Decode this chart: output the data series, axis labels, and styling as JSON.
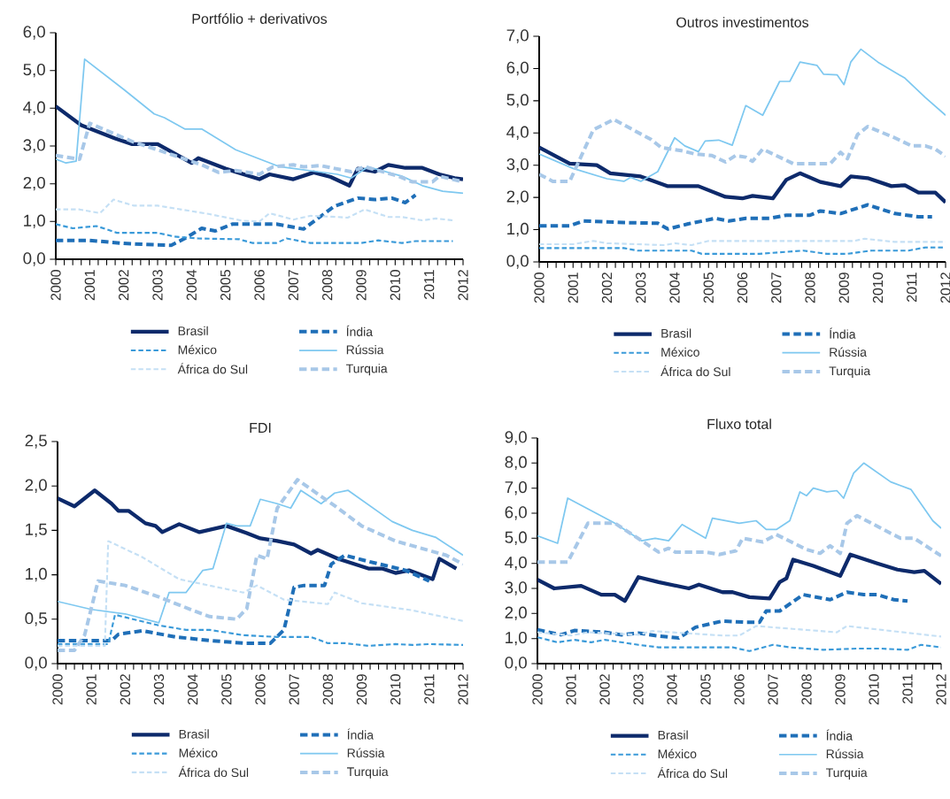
{
  "chart_data": [
    {
      "type": "line",
      "title": "Portfólio + derivativos",
      "xlim": [
        2000,
        2012
      ],
      "xticks": [
        2000,
        2001,
        2002,
        2003,
        2004,
        2005,
        2006,
        2007,
        2008,
        2009,
        2010,
        2011,
        2012
      ],
      "ylim": [
        0,
        6
      ],
      "yticks": [
        {
          "value": 0,
          "label": "0,0"
        },
        {
          "value": 1,
          "label": "1,0"
        },
        {
          "value": 2,
          "label": "2,0"
        },
        {
          "value": 3,
          "label": "3,0"
        },
        {
          "value": 4,
          "label": "4,0"
        },
        {
          "value": 5,
          "label": "5,0"
        },
        {
          "value": 6,
          "label": "6,0"
        }
      ],
      "legend": "bottom",
      "series": [
        {
          "name": "Brasil",
          "color": "#0d2a6b",
          "line_style": "solid",
          "x": [
            2000,
            2000.75,
            2001.75,
            2002.25,
            2003,
            2004,
            2004.2,
            2005,
            2006,
            2006.3,
            2007,
            2007.6,
            2008.1,
            2008.65,
            2008.9,
            2009.4,
            2009.8,
            2010.3,
            2010.8,
            2011.3,
            2011.75,
            2012
          ],
          "values": [
            4.05,
            3.55,
            3.2,
            3.05,
            3.05,
            2.55,
            2.68,
            2.4,
            2.12,
            2.25,
            2.12,
            2.3,
            2.18,
            1.95,
            2.4,
            2.32,
            2.5,
            2.42,
            2.42,
            2.25,
            2.15,
            2.12
          ]
        },
        {
          "name": "Índia",
          "color": "#1f6fb8",
          "line_style": "dashed",
          "x": [
            2000,
            2001,
            2002,
            2003,
            2003.4,
            2003.8,
            2004.3,
            2004.7,
            2005.2,
            2006.5,
            2007.3,
            2008.2,
            2008.9,
            2009.4,
            2009.9,
            2010.3,
            2010.6
          ],
          "values": [
            0.5,
            0.5,
            0.42,
            0.38,
            0.37,
            0.55,
            0.82,
            0.75,
            0.93,
            0.93,
            0.8,
            1.4,
            1.62,
            1.58,
            1.62,
            1.5,
            1.7
          ]
        },
        {
          "name": "México",
          "color": "#3a9ad9",
          "line_style": "dashed",
          "x": [
            2000,
            2000.5,
            2001.2,
            2001.8,
            2003,
            2003.5,
            2004.2,
            2005.4,
            2005.8,
            2006.5,
            2006.8,
            2007.5,
            2009,
            2009.5,
            2010.2,
            2010.6,
            2011.7
          ],
          "values": [
            0.93,
            0.82,
            0.88,
            0.7,
            0.7,
            0.6,
            0.55,
            0.53,
            0.43,
            0.43,
            0.55,
            0.43,
            0.43,
            0.5,
            0.43,
            0.48,
            0.48
          ]
        },
        {
          "name": "Rússia",
          "color": "#7ec8f0",
          "line_style": "solid",
          "x": [
            2000,
            2000.3,
            2000.6,
            2000.85,
            2002,
            2002.9,
            2003.2,
            2003.8,
            2004.3,
            2005.3,
            2006.6,
            2008.3,
            2008.7,
            2009.2,
            2010.2,
            2010.8,
            2011.4,
            2012
          ],
          "values": [
            2.65,
            2.55,
            2.6,
            5.3,
            4.5,
            3.85,
            3.75,
            3.45,
            3.45,
            2.9,
            2.45,
            2.25,
            2.15,
            2.45,
            2.2,
            1.95,
            1.8,
            1.75
          ]
        },
        {
          "name": "África do Sul",
          "color": "#c5e0f5",
          "line_style": "dashed",
          "x": [
            2000,
            2000.7,
            2001.3,
            2001.7,
            2002.3,
            2003,
            2004.5,
            2005.5,
            2006,
            2006.3,
            2007,
            2007.5,
            2008.3,
            2008.6,
            2009.1,
            2009.8,
            2010.2,
            2010.8,
            2011.2,
            2011.7
          ],
          "values": [
            1.32,
            1.32,
            1.22,
            1.58,
            1.42,
            1.42,
            1.2,
            1.02,
            1.0,
            1.22,
            1.05,
            1.15,
            1.12,
            1.1,
            1.32,
            1.12,
            1.12,
            1.03,
            1.08,
            1.03
          ]
        },
        {
          "name": "Turquia",
          "color": "#a8c8e8",
          "line_style": "dashed",
          "x": [
            2000,
            2000.7,
            2001,
            2002.3,
            2003,
            2004.3,
            2004.8,
            2005.3,
            2006,
            2006.4,
            2007,
            2007.3,
            2007.8,
            2008.7,
            2009.1,
            2010.1,
            2010.5,
            2011.1,
            2011.3,
            2012
          ],
          "values": [
            2.75,
            2.65,
            3.6,
            3.1,
            2.9,
            2.5,
            2.3,
            2.35,
            2.25,
            2.45,
            2.5,
            2.45,
            2.48,
            2.32,
            2.45,
            2.2,
            2.05,
            2.05,
            2.2,
            2.05
          ]
        }
      ]
    },
    {
      "type": "line",
      "title": "Outros investimentos",
      "xlim": [
        2000,
        2012
      ],
      "xticks": [
        2000,
        2001,
        2002,
        2003,
        2004,
        2005,
        2006,
        2007,
        2008,
        2009,
        2010,
        2011,
        2012
      ],
      "ylim": [
        0,
        7
      ],
      "yticks": [
        {
          "value": 0,
          "label": "0,0"
        },
        {
          "value": 1,
          "label": "1,0"
        },
        {
          "value": 2,
          "label": "2,0"
        },
        {
          "value": 3,
          "label": "3,0"
        },
        {
          "value": 4,
          "label": "4,0"
        },
        {
          "value": 5,
          "label": "5,0"
        },
        {
          "value": 6,
          "label": "6,0"
        },
        {
          "value": 7,
          "label": "7,0"
        }
      ],
      "legend": "bottom",
      "series": [
        {
          "name": "Brasil",
          "color": "#0d2a6b",
          "line_style": "solid",
          "x": [
            2000,
            2000.9,
            2001.7,
            2002.1,
            2003,
            2003.8,
            2004.7,
            2005.5,
            2006,
            2006.3,
            2006.9,
            2007.3,
            2007.7,
            2008.3,
            2008.9,
            2009.2,
            2009.7,
            2010.4,
            2010.8,
            2011.2,
            2011.7,
            2012
          ],
          "values": [
            3.55,
            3.05,
            3.0,
            2.75,
            2.65,
            2.35,
            2.35,
            2.02,
            1.97,
            2.05,
            1.97,
            2.55,
            2.75,
            2.48,
            2.35,
            2.65,
            2.6,
            2.35,
            2.38,
            2.15,
            2.15,
            1.85
          ]
        },
        {
          "name": "Índia",
          "color": "#1f6fb8",
          "line_style": "dashed",
          "x": [
            2000,
            2000.9,
            2001.3,
            2002.5,
            2003.5,
            2003.8,
            2004.4,
            2005.2,
            2005.6,
            2006.1,
            2006.8,
            2007.3,
            2008,
            2008.3,
            2008.9,
            2009.7,
            2010.5,
            2011.2,
            2011.6
          ],
          "values": [
            1.12,
            1.12,
            1.27,
            1.22,
            1.2,
            1.02,
            1.18,
            1.35,
            1.27,
            1.35,
            1.35,
            1.45,
            1.45,
            1.58,
            1.5,
            1.77,
            1.5,
            1.4,
            1.4
          ]
        },
        {
          "name": "México",
          "color": "#3a9ad9",
          "line_style": "dashed",
          "x": [
            2000,
            2002.5,
            2002.9,
            2004.5,
            2004.8,
            2006.5,
            2007.8,
            2008.5,
            2009.1,
            2009.8,
            2010.9,
            2011.4,
            2012
          ],
          "values": [
            0.43,
            0.43,
            0.35,
            0.35,
            0.25,
            0.25,
            0.35,
            0.25,
            0.25,
            0.35,
            0.35,
            0.45,
            0.45
          ]
        },
        {
          "name": "Rússia",
          "color": "#7ec8f0",
          "line_style": "solid",
          "x": [
            2000,
            2001,
            2002,
            2002.5,
            2002.7,
            2003,
            2003.5,
            2004,
            2004.3,
            2004.7,
            2004.9,
            2005.3,
            2005.7,
            2006.1,
            2006.6,
            2007.1,
            2007.4,
            2007.7,
            2008.2,
            2008.4,
            2008.8,
            2009,
            2009.2,
            2009.5,
            2010,
            2010.8,
            2011.4,
            2012
          ],
          "values": [
            3.35,
            2.9,
            2.58,
            2.5,
            2.62,
            2.5,
            2.8,
            3.85,
            3.6,
            3.42,
            3.75,
            3.78,
            3.62,
            4.85,
            4.55,
            5.6,
            5.6,
            6.2,
            6.1,
            5.82,
            5.8,
            5.5,
            6.2,
            6.6,
            6.2,
            5.7,
            5.1,
            4.55
          ]
        },
        {
          "name": "África do Sul",
          "color": "#c5e0f5",
          "line_style": "dashed",
          "x": [
            2000,
            2001,
            2001.6,
            2002,
            2003.7,
            2004,
            2004.5,
            2005,
            2009.3,
            2009.6,
            2010.5,
            2012
          ],
          "values": [
            0.55,
            0.55,
            0.65,
            0.58,
            0.52,
            0.58,
            0.52,
            0.65,
            0.65,
            0.72,
            0.62,
            0.62
          ]
        },
        {
          "name": "Turquia",
          "color": "#a8c8e8",
          "line_style": "dashed",
          "x": [
            2000,
            2000.4,
            2000.9,
            2001.6,
            2002.2,
            2003.3,
            2003.6,
            2004.2,
            2004.6,
            2005.1,
            2005.5,
            2005.8,
            2006.1,
            2006.3,
            2006.6,
            2007.5,
            2008.3,
            2008.6,
            2008.9,
            2009.1,
            2009.4,
            2009.7,
            2010.5,
            2011,
            2011.4,
            2011.7,
            2012
          ],
          "values": [
            2.72,
            2.5,
            2.5,
            4.1,
            4.42,
            3.8,
            3.55,
            3.45,
            3.35,
            3.3,
            3.1,
            3.3,
            3.25,
            3.12,
            3.5,
            3.05,
            3.05,
            3.05,
            3.4,
            3.2,
            3.95,
            4.2,
            3.85,
            3.6,
            3.6,
            3.5,
            3.28
          ]
        }
      ]
    },
    {
      "type": "line",
      "title": "FDI",
      "xlim": [
        2000,
        2012
      ],
      "xticks": [
        2000,
        2001,
        2002,
        2003,
        2004,
        2005,
        2006,
        2007,
        2008,
        2009,
        2010,
        2011,
        2012
      ],
      "ylim": [
        0,
        2.5
      ],
      "yticks": [
        {
          "value": 0,
          "label": "0,0"
        },
        {
          "value": 0.5,
          "label": "0,5"
        },
        {
          "value": 1,
          "label": "1,0"
        },
        {
          "value": 1.5,
          "label": "1,5"
        },
        {
          "value": 2,
          "label": "2,0"
        },
        {
          "value": 2.5,
          "label": "2,5"
        }
      ],
      "legend": "bottom",
      "series": [
        {
          "name": "Brasil",
          "color": "#0d2a6b",
          "line_style": "solid",
          "x": [
            2000,
            2000.5,
            2001.1,
            2001.6,
            2001.8,
            2002.1,
            2002.6,
            2002.9,
            2003.1,
            2003.6,
            2004.2,
            2005,
            2005.6,
            2006,
            2006.5,
            2007,
            2007.5,
            2007.7,
            2008.3,
            2009.2,
            2009.6,
            2010,
            2010.4,
            2011.1,
            2011.3,
            2011.8
          ],
          "values": [
            1.86,
            1.77,
            1.95,
            1.8,
            1.72,
            1.72,
            1.58,
            1.55,
            1.48,
            1.57,
            1.48,
            1.55,
            1.47,
            1.41,
            1.38,
            1.34,
            1.24,
            1.28,
            1.18,
            1.07,
            1.07,
            1.02,
            1.05,
            0.95,
            1.18,
            1.07
          ]
        },
        {
          "name": "Índia",
          "color": "#1f6fb8",
          "line_style": "dashed",
          "x": [
            2000,
            2001.6,
            2001.8,
            2002.5,
            2003.5,
            2004.5,
            2005.5,
            2006.3,
            2006.7,
            2007,
            2007.3,
            2007.9,
            2008.1,
            2008.5,
            2009.2,
            2010.3,
            2011
          ],
          "values": [
            0.26,
            0.26,
            0.33,
            0.37,
            0.3,
            0.26,
            0.23,
            0.23,
            0.38,
            0.86,
            0.88,
            0.88,
            1.12,
            1.22,
            1.15,
            1.05,
            0.93
          ]
        },
        {
          "name": "México",
          "color": "#3a9ad9",
          "line_style": "dashed",
          "x": [
            2000,
            2001.5,
            2001.7,
            2003,
            2003.8,
            2004.5,
            2005.5,
            2006.5,
            2007.5,
            2008,
            2008.5,
            2009.2,
            2010,
            2010.5,
            2011,
            2012
          ],
          "values": [
            0.22,
            0.22,
            0.55,
            0.43,
            0.38,
            0.38,
            0.32,
            0.3,
            0.3,
            0.23,
            0.23,
            0.2,
            0.22,
            0.21,
            0.22,
            0.21
          ]
        },
        {
          "name": "Rússia",
          "color": "#7ec8f0",
          "line_style": "solid",
          "x": [
            2000,
            2001,
            2002,
            2003,
            2003.3,
            2003.8,
            2004.3,
            2004.6,
            2005,
            2005.3,
            2005.7,
            2006,
            2006.5,
            2006.9,
            2007.2,
            2007.8,
            2008.2,
            2008.6,
            2009.9,
            2010.5,
            2011.2,
            2012
          ],
          "values": [
            0.7,
            0.61,
            0.56,
            0.46,
            0.8,
            0.8,
            1.05,
            1.07,
            1.58,
            1.55,
            1.55,
            1.85,
            1.8,
            1.75,
            1.95,
            1.8,
            1.92,
            1.95,
            1.6,
            1.5,
            1.42,
            1.22
          ]
        },
        {
          "name": "África do Sul",
          "color": "#c5e0f5",
          "line_style": "dashed",
          "x": [
            2000,
            2001.4,
            2001.5,
            2002.5,
            2003.6,
            2005.5,
            2005.9,
            2006.7,
            2008,
            2008.2,
            2009,
            2010.5,
            2012
          ],
          "values": [
            0.2,
            0.2,
            1.38,
            1.2,
            0.95,
            0.8,
            0.88,
            0.72,
            0.67,
            0.8,
            0.68,
            0.6,
            0.48
          ]
        },
        {
          "name": "Turquia",
          "color": "#a8c8e8",
          "line_style": "dashed",
          "x": [
            2000,
            2000.5,
            2000.8,
            2001.2,
            2002,
            2003,
            2004,
            2004.5,
            2005.3,
            2005.6,
            2005.9,
            2006.2,
            2006.5,
            2007.1,
            2008.3,
            2009,
            2010,
            2011.5,
            2012
          ],
          "values": [
            0.15,
            0.15,
            0.32,
            0.93,
            0.88,
            0.75,
            0.6,
            0.53,
            0.5,
            0.62,
            1.22,
            1.18,
            1.75,
            2.07,
            1.75,
            1.55,
            1.38,
            1.22,
            1.12
          ]
        }
      ]
    },
    {
      "type": "line",
      "title": "Fluxo total",
      "xlim": [
        2000,
        2012
      ],
      "xticks": [
        2000,
        2001,
        2002,
        2003,
        2004,
        2005,
        2006,
        2007,
        2008,
        2009,
        2010,
        2011,
        2012
      ],
      "ylim": [
        0,
        9
      ],
      "yticks": [
        {
          "value": 0,
          "label": "0,0"
        },
        {
          "value": 1,
          "label": "1,0"
        },
        {
          "value": 2,
          "label": "2,0"
        },
        {
          "value": 3,
          "label": "3,0"
        },
        {
          "value": 4,
          "label": "4,0"
        },
        {
          "value": 5,
          "label": "5,0"
        },
        {
          "value": 6,
          "label": "6,0"
        },
        {
          "value": 7,
          "label": "7,0"
        },
        {
          "value": 8,
          "label": "8,0"
        },
        {
          "value": 9,
          "label": "9,0"
        }
      ],
      "legend": "bottom",
      "series": [
        {
          "name": "Brasil",
          "color": "#0d2a6b",
          "line_style": "solid",
          "x": [
            2000,
            2000.5,
            2001.3,
            2001.9,
            2002.3,
            2002.6,
            2003,
            2003.6,
            2004.5,
            2004.8,
            2005.5,
            2005.8,
            2006.3,
            2006.9,
            2007.2,
            2007.4,
            2007.6,
            2008.2,
            2009,
            2009.3,
            2010.1,
            2010.7,
            2011.2,
            2011.5,
            2012
          ],
          "values": [
            3.35,
            3.0,
            3.1,
            2.75,
            2.75,
            2.5,
            3.45,
            3.25,
            3.0,
            3.15,
            2.85,
            2.85,
            2.65,
            2.6,
            3.25,
            3.4,
            4.15,
            3.9,
            3.5,
            4.35,
            4.0,
            3.75,
            3.65,
            3.7,
            3.18
          ]
        },
        {
          "name": "Índia",
          "color": "#1f6fb8",
          "line_style": "dashed",
          "x": [
            2000,
            2000.7,
            2001.1,
            2002,
            2002.5,
            2003,
            2003.5,
            2004.2,
            2004.7,
            2005.5,
            2006.2,
            2006.6,
            2006.8,
            2007.2,
            2007.9,
            2008.7,
            2009.2,
            2009.7,
            2010.1,
            2010.6,
            2011
          ],
          "values": [
            1.35,
            1.15,
            1.32,
            1.25,
            1.15,
            1.22,
            1.12,
            1.02,
            1.45,
            1.7,
            1.65,
            1.65,
            2.1,
            2.1,
            2.75,
            2.55,
            2.85,
            2.75,
            2.75,
            2.55,
            2.5
          ]
        },
        {
          "name": "México",
          "color": "#3a9ad9",
          "line_style": "dashed",
          "x": [
            2000,
            2000.6,
            2001.1,
            2001.6,
            2002,
            2003,
            2003.6,
            2005.8,
            2006.3,
            2007,
            2007.5,
            2008.5,
            2009.5,
            2010.2,
            2011,
            2011.4,
            2012
          ],
          "values": [
            1.05,
            0.85,
            0.95,
            0.85,
            0.95,
            0.75,
            0.65,
            0.65,
            0.5,
            0.75,
            0.65,
            0.55,
            0.6,
            0.6,
            0.55,
            0.75,
            0.65
          ]
        },
        {
          "name": "Rússia",
          "color": "#7ec8f0",
          "line_style": "solid",
          "x": [
            2000,
            2000.6,
            2000.9,
            2002.3,
            2003.1,
            2003.5,
            2003.9,
            2004.3,
            2005,
            2005.2,
            2006,
            2006.5,
            2006.8,
            2007.1,
            2007.5,
            2007.8,
            2008,
            2008.2,
            2008.6,
            2008.9,
            2009.1,
            2009.4,
            2009.7,
            2010.5,
            2011.1,
            2011.75,
            2012
          ],
          "values": [
            5.1,
            4.8,
            6.6,
            5.6,
            4.9,
            5.0,
            4.9,
            5.55,
            5.0,
            5.8,
            5.6,
            5.7,
            5.35,
            5.35,
            5.7,
            6.85,
            6.7,
            7.0,
            6.85,
            6.9,
            6.6,
            7.6,
            8.0,
            7.25,
            6.95,
            5.7,
            5.4
          ]
        },
        {
          "name": "África do Sul",
          "color": "#c5e0f5",
          "line_style": "dashed",
          "x": [
            2000,
            2001,
            2001.5,
            2003,
            2003.4,
            2005.5,
            2006,
            2006.5,
            2008.9,
            2009.2,
            2012
          ],
          "values": [
            1.25,
            1.12,
            1.25,
            1.15,
            1.3,
            1.12,
            1.12,
            1.5,
            1.25,
            1.5,
            1.08
          ]
        },
        {
          "name": "Turquia",
          "color": "#a8c8e8",
          "line_style": "dashed",
          "x": [
            2000,
            2000.9,
            2001.5,
            2002.3,
            2003.1,
            2003.6,
            2003.9,
            2004.1,
            2005,
            2005.4,
            2005.9,
            2006.1,
            2006.7,
            2007.1,
            2008,
            2008.4,
            2008.7,
            2009,
            2009.2,
            2009.5,
            2010.5,
            2010.8,
            2011.2,
            2012
          ],
          "values": [
            4.05,
            4.05,
            5.6,
            5.6,
            4.9,
            4.45,
            4.6,
            4.45,
            4.45,
            4.35,
            4.5,
            5.0,
            4.85,
            5.15,
            4.55,
            4.4,
            4.7,
            4.4,
            5.6,
            5.9,
            5.2,
            5.0,
            5.0,
            4.3
          ]
        }
      ]
    }
  ]
}
